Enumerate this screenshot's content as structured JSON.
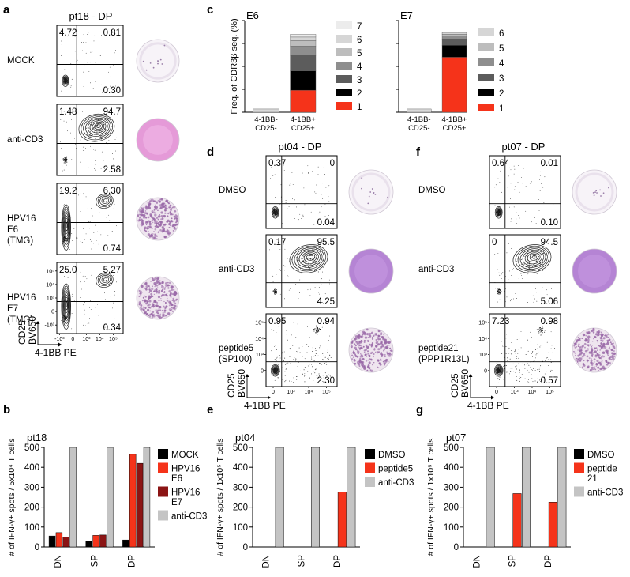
{
  "panel_letters": [
    "a",
    "b",
    "c",
    "d",
    "e",
    "f",
    "g"
  ],
  "colors": {
    "red": "#f5331a",
    "darkred": "#8b1414",
    "grey": "#c4c4c4",
    "black": "#000000",
    "well_purple": "#9a6aa8",
    "well_pink": "#e59ad8"
  },
  "panel_a": {
    "title": "pt18 - DP",
    "x_label": "4-1BB PE",
    "y_label": "CD25 BV650",
    "x_ticks": [
      "-10³",
      "0",
      "10³",
      "10⁴",
      "10⁵"
    ],
    "y_ticks": [
      "10⁵",
      "10⁴",
      "10³",
      "0",
      "-10³"
    ],
    "rows": [
      {
        "label": "MOCK",
        "q_ul": "4.72",
        "q_ur": "0.81",
        "q_lr": "0.30",
        "plot": "sparse",
        "well": "clean"
      },
      {
        "label": "anti-CD3",
        "q_ul": "1.48",
        "q_ur": "94.7",
        "q_lr": "2.58",
        "plot": "positive",
        "well": "pink"
      },
      {
        "label": "HPV16\nE6\n(TMG)",
        "q_ul": "19.2",
        "q_ur": "6.30",
        "q_lr": "0.74",
        "plot": "spots",
        "well": "spots"
      },
      {
        "label": "HPV16\nE7\n(TMG)",
        "q_ul": "25.0",
        "q_ur": "5.27",
        "q_lr": "0.34",
        "plot": "spots",
        "well": "spots"
      }
    ]
  },
  "panel_d": {
    "title": "pt04 - DP",
    "x_label": "4-1BB PE",
    "y_label": "CD25 BV650",
    "x_ticks": [
      "0",
      "10³",
      "10⁴",
      "10⁵"
    ],
    "y_ticks": [
      "10⁵",
      "10⁴",
      "10³",
      "0"
    ],
    "rows": [
      {
        "label": "DMSO",
        "q_ul": "0.37",
        "q_ur": "0",
        "q_lr": "0.04",
        "plot": "neg",
        "well": "clean"
      },
      {
        "label": "anti-CD3",
        "q_ul": "0.17",
        "q_ur": "95.5",
        "q_lr": "4.25",
        "plot": "positive",
        "well": "purple"
      },
      {
        "label": "peptide5\n(SP100)",
        "q_ul": "0.95",
        "q_ur": "0.94",
        "q_lr": "2.30",
        "plot": "scatterpos",
        "well": "spots"
      }
    ]
  },
  "panel_f": {
    "title": "pt07 - DP",
    "x_label": "4-1BB PE",
    "y_label": "CD25 BV650",
    "x_ticks": [
      "0",
      "10³",
      "10⁴",
      "10⁵"
    ],
    "y_ticks": [
      "10⁵",
      "10⁴",
      "10³",
      "0"
    ],
    "rows": [
      {
        "label": "DMSO",
        "q_ul": "0.64",
        "q_ur": "0.01",
        "q_lr": "0.10",
        "plot": "neg",
        "well": "clean"
      },
      {
        "label": "anti-CD3",
        "q_ul": "0",
        "q_ur": "94.5",
        "q_lr": "5.06",
        "plot": "positive",
        "well": "purple"
      },
      {
        "label": "peptide21\n(PPP1R13L)",
        "q_ul": "7.23",
        "q_ur": "0.98",
        "q_lr": "0.57",
        "plot": "scatterpos",
        "well": "spots"
      }
    ]
  },
  "chart_data": [
    {
      "panel": "b",
      "type": "bar",
      "title": "pt18",
      "ylabel": "# of IFN-γ+ spots / 5x10⁴ T cells",
      "categories": [
        "DN",
        "SP",
        "DP"
      ],
      "ylim": [
        0,
        500
      ],
      "yticks": [
        0,
        100,
        200,
        300,
        400,
        500
      ],
      "series": [
        {
          "name": "MOCK",
          "color": "#000000",
          "values": [
            55,
            30,
            35
          ]
        },
        {
          "name": "HPV16\nE6",
          "color": "#f5331a",
          "values": [
            72,
            58,
            465
          ]
        },
        {
          "name": "HPV16\nE7",
          "color": "#8b1414",
          "values": [
            50,
            60,
            420
          ]
        },
        {
          "name": "anti-CD3",
          "color": "#c4c4c4",
          "values": [
            500,
            500,
            500
          ]
        }
      ]
    },
    {
      "panel": "e",
      "type": "bar",
      "title": "pt04",
      "ylabel": "# of IFN-γ+ spots / 1x10⁵ T cells",
      "categories": [
        "DN",
        "SP",
        "DP"
      ],
      "ylim": [
        0,
        500
      ],
      "yticks": [
        0,
        100,
        200,
        300,
        400,
        500
      ],
      "series": [
        {
          "name": "DMSO",
          "color": "#000000",
          "values": [
            0,
            0,
            0
          ]
        },
        {
          "name": "peptide5",
          "color": "#f5331a",
          "values": [
            0,
            0,
            275
          ]
        },
        {
          "name": "anti-CD3",
          "color": "#c4c4c4",
          "values": [
            500,
            500,
            500
          ]
        }
      ]
    },
    {
      "panel": "g",
      "type": "bar",
      "title": "pt07",
      "ylabel": "# of IFN-γ+ spots / 1x10⁵ T cells",
      "categories": [
        "DN",
        "SP",
        "DP"
      ],
      "ylim": [
        0,
        500
      ],
      "yticks": [
        0,
        100,
        200,
        300,
        400,
        500
      ],
      "series": [
        {
          "name": "DMSO",
          "color": "#000000",
          "values": [
            0,
            0,
            0
          ]
        },
        {
          "name": "peptide\n21",
          "color": "#f5331a",
          "values": [
            0,
            268,
            225
          ]
        },
        {
          "name": "anti-CD3",
          "color": "#c4c4c4",
          "values": [
            500,
            500,
            500
          ]
        }
      ]
    },
    {
      "panel": "c",
      "type": "bar",
      "stacked": true,
      "title": "E6",
      "ylabel": "Freq. of CDR3β seq. (%)",
      "categories": [
        "4-1BB-\nCD25-",
        "4-1BB+\nCD25+"
      ],
      "ylim": [
        0,
        100
      ],
      "legend": [
        "7",
        "6",
        "5",
        "4",
        "3",
        "2",
        "1"
      ],
      "legend_colors": [
        "#ececec",
        "#d6d6d6",
        "#bdbdbd",
        "#8e8e8e",
        "#5c5c5c",
        "#000000",
        "#f5331a"
      ],
      "stacks": [
        {
          "category": "4-1BB-\nCD25-",
          "segments": [
            {
              "clone": "other",
              "value": 3.5,
              "color": "#d9d9d9"
            }
          ]
        },
        {
          "category": "4-1BB+\nCD25+",
          "segments": [
            {
              "clone": "1",
              "value": 24,
              "color": "#f5331a"
            },
            {
              "clone": "2",
              "value": 21,
              "color": "#000000"
            },
            {
              "clone": "3",
              "value": 17,
              "color": "#5c5c5c"
            },
            {
              "clone": "4",
              "value": 10,
              "color": "#8e8e8e"
            },
            {
              "clone": "5",
              "value": 6,
              "color": "#bdbdbd"
            },
            {
              "clone": "6",
              "value": 4,
              "color": "#d6d6d6"
            },
            {
              "clone": "7",
              "value": 3,
              "color": "#ececec"
            }
          ]
        }
      ]
    },
    {
      "panel": "c",
      "type": "bar",
      "stacked": true,
      "title": "E7",
      "ylabel": "",
      "categories": [
        "4-1BB-\nCD25-",
        "4-1BB+\nCD25+"
      ],
      "ylim": [
        0,
        100
      ],
      "legend": [
        "6",
        "5",
        "4",
        "3",
        "2",
        "1"
      ],
      "legend_colors": [
        "#d6d6d6",
        "#bdbdbd",
        "#8e8e8e",
        "#5c5c5c",
        "#000000",
        "#f5331a"
      ],
      "stacks": [
        {
          "category": "4-1BB-\nCD25-",
          "segments": [
            {
              "clone": "other",
              "value": 3.5,
              "color": "#d9d9d9"
            }
          ]
        },
        {
          "category": "4-1BB+\nCD25+",
          "segments": [
            {
              "clone": "1",
              "value": 60,
              "color": "#f5331a"
            },
            {
              "clone": "2",
              "value": 13,
              "color": "#000000"
            },
            {
              "clone": "3",
              "value": 7,
              "color": "#5c5c5c"
            },
            {
              "clone": "4",
              "value": 3,
              "color": "#8e8e8e"
            },
            {
              "clone": "5",
              "value": 2,
              "color": "#bdbdbd"
            },
            {
              "clone": "6",
              "value": 2,
              "color": "#d6d6d6"
            }
          ]
        }
      ]
    }
  ]
}
